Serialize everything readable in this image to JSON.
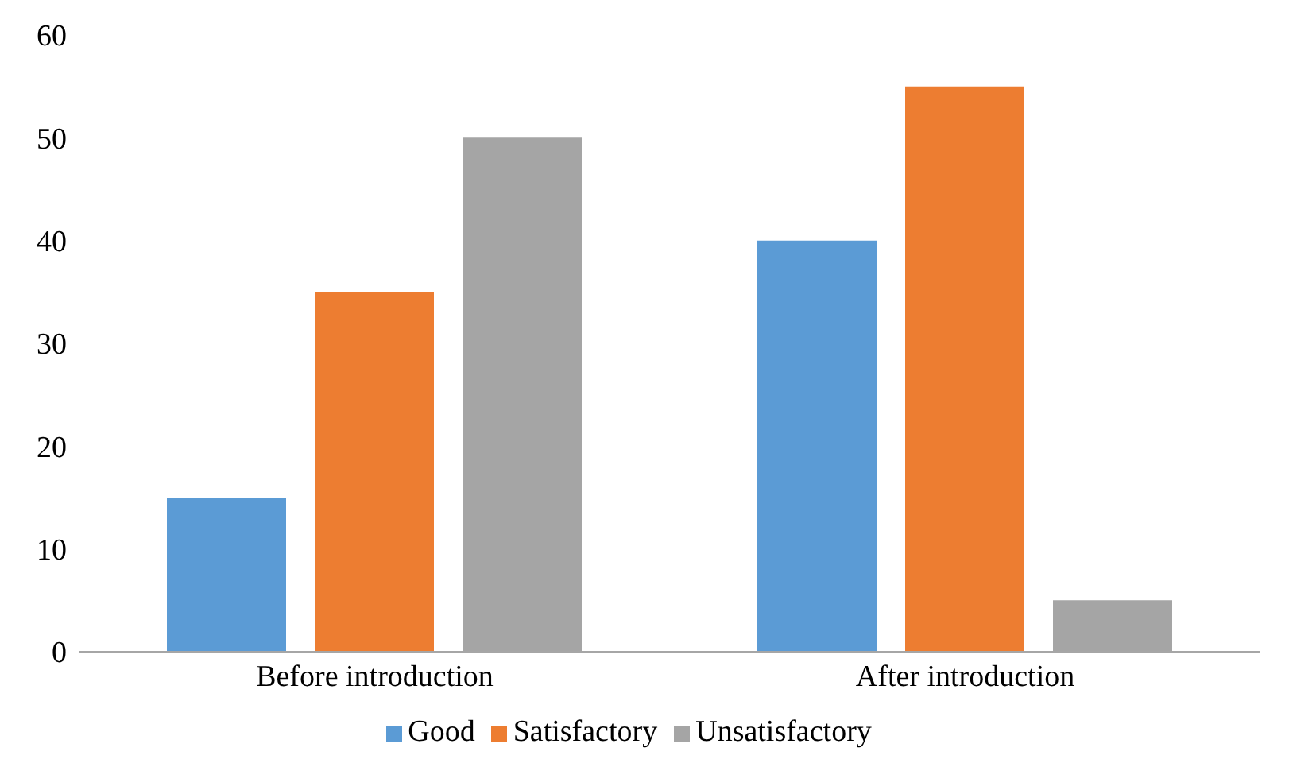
{
  "chart_data": {
    "type": "bar",
    "categories": [
      "Before introduction",
      "After introduction"
    ],
    "series": [
      {
        "name": "Good",
        "color": "#5b9bd5",
        "values": [
          15,
          40
        ]
      },
      {
        "name": "Satisfactory",
        "color": "#ed7d31",
        "values": [
          35,
          55
        ]
      },
      {
        "name": "Unsatisfactory",
        "color": "#a5a5a5",
        "values": [
          50,
          5
        ]
      }
    ],
    "ylim": [
      0,
      60
    ],
    "yticks": [
      0,
      10,
      20,
      30,
      40,
      50,
      60
    ],
    "grid": false,
    "legend": "bottom"
  }
}
